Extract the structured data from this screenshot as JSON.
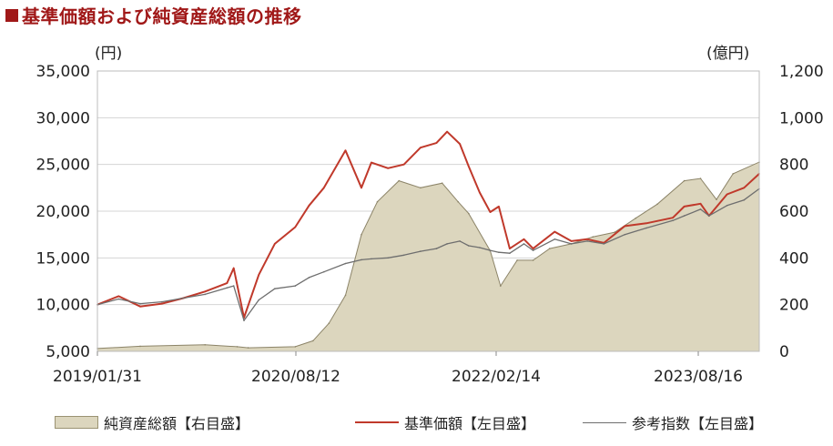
{
  "header": {
    "title": "基準価額および純資産総額の推移"
  },
  "chart_data": {
    "type": "line",
    "title": "基準価額および純資産総額の推移",
    "left_axis": {
      "unit": "(円)",
      "min": 5000,
      "max": 35000,
      "ticks": [
        5000,
        10000,
        15000,
        20000,
        25000,
        30000,
        35000
      ],
      "tick_labels": [
        "5,000",
        "10,000",
        "15,000",
        "20,000",
        "25,000",
        "30,000",
        "35,000"
      ]
    },
    "right_axis": {
      "unit": "(億円)",
      "min": 0,
      "max": 1200,
      "ticks": [
        0,
        200,
        400,
        600,
        800,
        1000,
        1200
      ],
      "tick_labels": [
        "0",
        "200",
        "400",
        "600",
        "800",
        "1,000",
        "1,200"
      ]
    },
    "x_labels": [
      "2019/01/31",
      "2020/08/12",
      "2022/02/14",
      "2023/08/16"
    ],
    "x_range": [
      "2019-01-31",
      "2024-03-15"
    ],
    "grid": true,
    "legend_position": "bottom",
    "series": [
      {
        "name": "純資産総額【右目盛】",
        "axis": "right",
        "kind": "area",
        "color": "#dcd6be",
        "stroke": "#8c8468",
        "dates": [
          "2019-01-31",
          "2019-06-01",
          "2019-12-01",
          "2020-03-01",
          "2020-04-01",
          "2020-08-12",
          "2020-10-01",
          "2020-11-15",
          "2021-01-01",
          "2021-02-15",
          "2021-04-01",
          "2021-06-01",
          "2021-08-01",
          "2021-10-01",
          "2021-11-15",
          "2021-12-15",
          "2022-02-14",
          "2022-03-15",
          "2022-05-01",
          "2022-06-15",
          "2022-08-01",
          "2022-10-01",
          "2022-12-01",
          "2023-02-01",
          "2023-04-01",
          "2023-06-01",
          "2023-08-16",
          "2023-10-01",
          "2023-11-15",
          "2024-01-01",
          "2024-03-15"
        ],
        "values": [
          12,
          22,
          28,
          20,
          15,
          20,
          45,
          120,
          240,
          500,
          640,
          730,
          700,
          720,
          640,
          590,
          430,
          280,
          390,
          390,
          440,
          460,
          490,
          510,
          570,
          630,
          730,
          740,
          650,
          760,
          810
        ]
      },
      {
        "name": "基準価額【左目盛】",
        "axis": "left",
        "kind": "line",
        "color": "#c0392b",
        "dates": [
          "2019-01-31",
          "2019-04-01",
          "2019-06-01",
          "2019-08-01",
          "2019-10-01",
          "2019-12-01",
          "2020-02-01",
          "2020-02-20",
          "2020-03-20",
          "2020-05-01",
          "2020-06-15",
          "2020-08-12",
          "2020-09-20",
          "2020-11-01",
          "2021-01-01",
          "2021-02-15",
          "2021-03-15",
          "2021-05-01",
          "2021-06-15",
          "2021-08-01",
          "2021-09-15",
          "2021-10-15",
          "2021-11-20",
          "2021-12-15",
          "2022-01-15",
          "2022-02-14",
          "2022-03-10",
          "2022-04-10",
          "2022-05-20",
          "2022-06-15",
          "2022-08-15",
          "2022-10-01",
          "2022-11-15",
          "2023-01-01",
          "2023-03-01",
          "2023-05-01",
          "2023-07-15",
          "2023-08-16",
          "2023-10-01",
          "2023-10-25",
          "2023-12-15",
          "2024-02-01",
          "2024-03-15"
        ],
        "values": [
          10000,
          10900,
          9800,
          10100,
          10700,
          11400,
          12300,
          13900,
          8600,
          13200,
          16500,
          18300,
          20600,
          22500,
          26500,
          22500,
          25200,
          24600,
          25000,
          26800,
          27300,
          28500,
          27200,
          24800,
          22000,
          19900,
          20500,
          16000,
          17000,
          16000,
          17800,
          16800,
          17000,
          16600,
          18400,
          18700,
          19300,
          20500,
          20800,
          19500,
          21800,
          22500,
          24000
        ]
      },
      {
        "name": "参考指数【左目盛】",
        "axis": "left",
        "kind": "line",
        "color": "#6e6e6e",
        "dates": [
          "2019-01-31",
          "2019-04-01",
          "2019-06-01",
          "2019-08-01",
          "2019-10-01",
          "2019-12-01",
          "2020-02-01",
          "2020-02-20",
          "2020-03-20",
          "2020-05-01",
          "2020-06-15",
          "2020-08-12",
          "2020-09-20",
          "2020-11-01",
          "2021-01-01",
          "2021-02-15",
          "2021-03-15",
          "2021-05-01",
          "2021-06-15",
          "2021-08-01",
          "2021-09-15",
          "2021-10-15",
          "2021-11-20",
          "2021-12-15",
          "2022-01-15",
          "2022-02-14",
          "2022-03-10",
          "2022-04-10",
          "2022-05-20",
          "2022-06-15",
          "2022-08-15",
          "2022-10-01",
          "2022-11-15",
          "2023-01-01",
          "2023-03-01",
          "2023-05-01",
          "2023-07-15",
          "2023-08-16",
          "2023-10-01",
          "2023-10-25",
          "2023-12-15",
          "2024-02-01",
          "2024-03-15"
        ],
        "values": [
          10000,
          10600,
          10100,
          10300,
          10700,
          11100,
          11800,
          12000,
          8300,
          10500,
          11700,
          12000,
          12900,
          13500,
          14400,
          14800,
          14900,
          15000,
          15300,
          15700,
          16000,
          16500,
          16800,
          16300,
          16100,
          15800,
          15600,
          15500,
          16500,
          15800,
          17000,
          16500,
          16800,
          16500,
          17500,
          18200,
          19000,
          19500,
          20200,
          19500,
          20600,
          21200,
          22400
        ]
      }
    ]
  }
}
